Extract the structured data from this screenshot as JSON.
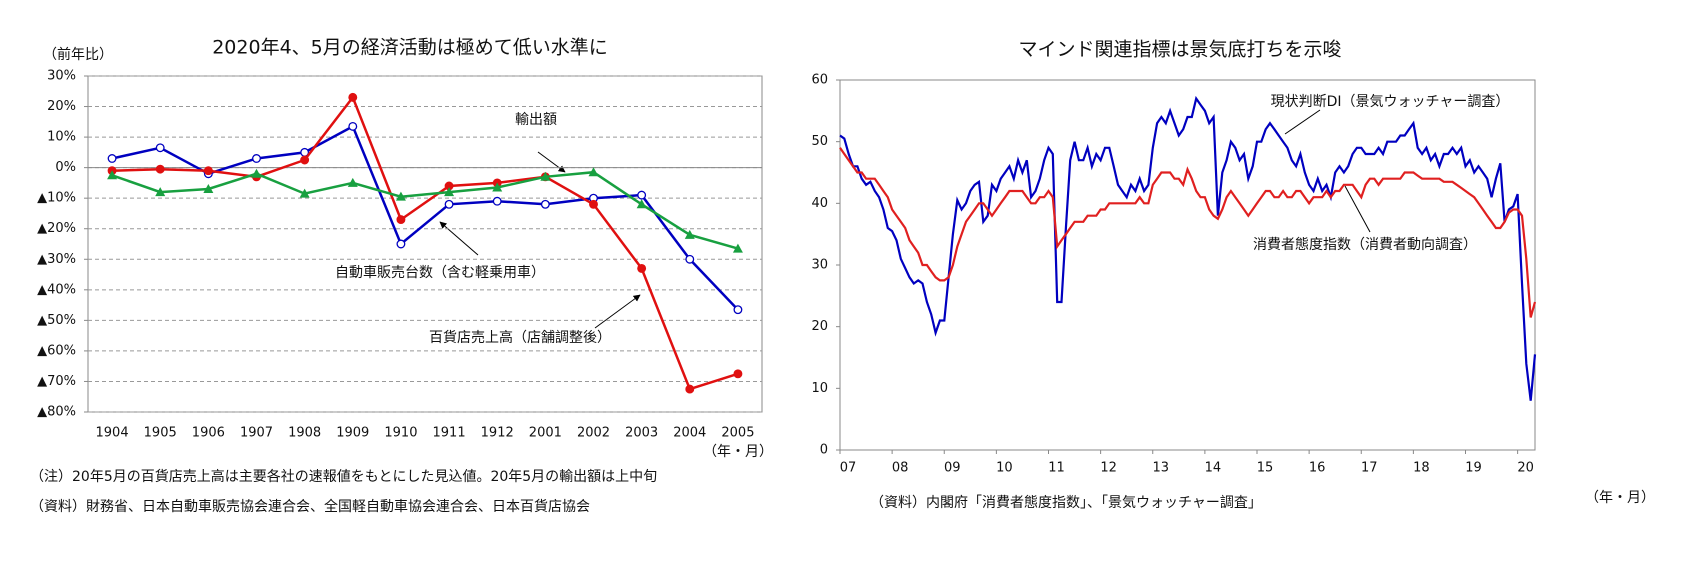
{
  "chart_data": [
    {
      "type": "line",
      "title": "2020年4、5月の経済活動は極めて低い水準に",
      "y_label": "（前年比）",
      "x_label": "（年・月）",
      "notes": [
        "（注）20年5月の百貨店売上高は主要各社の速報値をもとにした見込値。20年5月の輸出額は上中旬",
        "（資料）財務省、日本自動車販売協会連合会、全国軽自動車協会連合会、日本百貨店協会"
      ],
      "categories": [
        "1904",
        "1905",
        "1906",
        "1907",
        "1908",
        "1909",
        "1910",
        "1911",
        "1912",
        "2001",
        "2002",
        "2003",
        "2004",
        "2005"
      ],
      "series": [
        {
          "name": "自動車販売台数（含む軽乗用車）",
          "color": "#0000c0",
          "marker": "circle-open",
          "values": [
            3,
            6.5,
            -2,
            3,
            5,
            13.5,
            -25,
            -12,
            -11,
            -12,
            -10,
            -9,
            -30,
            -46.5
          ]
        },
        {
          "name": "百貨店売上高（店舗調整後）",
          "color": "#e01010",
          "marker": "circle",
          "values": [
            -1,
            -0.5,
            -1,
            -3,
            2.5,
            23,
            -17,
            -6,
            -5,
            -3,
            -12,
            -33,
            -72.5,
            -67.5
          ]
        },
        {
          "name": "輸出額",
          "color": "#18a040",
          "marker": "triangle",
          "values": [
            -2.5,
            -8,
            -7,
            -2,
            -8.5,
            -5,
            -9.5,
            -8,
            -6.5,
            -3,
            -1.5,
            -12,
            -22,
            -26.5
          ]
        }
      ],
      "ylim": [
        -80,
        30
      ],
      "yticks": [
        {
          "value": 30,
          "label": "30%"
        },
        {
          "value": 20,
          "label": "20%"
        },
        {
          "value": 10,
          "label": "10%"
        },
        {
          "value": 0,
          "label": "0%"
        },
        {
          "value": -10,
          "label": "▲10%"
        },
        {
          "value": -20,
          "label": "▲20%"
        },
        {
          "value": -30,
          "label": "▲30%"
        },
        {
          "value": -40,
          "label": "▲40%"
        },
        {
          "value": -50,
          "label": "▲50%"
        },
        {
          "value": -60,
          "label": "▲60%"
        },
        {
          "value": -70,
          "label": "▲70%"
        },
        {
          "value": -80,
          "label": "▲80%"
        }
      ],
      "grid": true
    },
    {
      "type": "line",
      "title": "マインド関連指標は景気底打ちを示唆",
      "x_label": "（年・月）",
      "notes": [
        "（資料）内閣府「消費者態度指数」、「景気ウォッチャー調査」"
      ],
      "categories": [
        "07",
        null,
        null,
        null,
        null,
        null,
        null,
        null,
        null,
        null,
        null,
        null,
        "08",
        null,
        null,
        null,
        null,
        null,
        null,
        null,
        null,
        null,
        null,
        null,
        "09",
        null,
        null,
        null,
        null,
        null,
        null,
        null,
        null,
        null,
        null,
        null,
        "10",
        null,
        null,
        null,
        null,
        null,
        null,
        null,
        null,
        null,
        null,
        null,
        "11",
        null,
        null,
        null,
        null,
        null,
        null,
        null,
        null,
        null,
        null,
        null,
        "12",
        null,
        null,
        null,
        null,
        null,
        null,
        null,
        null,
        null,
        null,
        null,
        "13",
        null,
        null,
        null,
        null,
        null,
        null,
        null,
        null,
        null,
        null,
        null,
        "14",
        null,
        null,
        null,
        null,
        null,
        null,
        null,
        null,
        null,
        null,
        null,
        "15",
        null,
        null,
        null,
        null,
        null,
        null,
        null,
        null,
        null,
        null,
        null,
        "16",
        null,
        null,
        null,
        null,
        null,
        null,
        null,
        null,
        null,
        null,
        null,
        "17",
        null,
        null,
        null,
        null,
        null,
        null,
        null,
        null,
        null,
        null,
        null,
        "18",
        null,
        null,
        null,
        null,
        null,
        null,
        null,
        null,
        null,
        null,
        null,
        "19",
        null,
        null,
        null,
        null,
        null,
        null,
        null,
        null,
        null,
        null,
        null,
        "20",
        null,
        null,
        null,
        null
      ],
      "series": [
        {
          "name": "現状判断DI（景気ウォッチャー調査）",
          "color": "#0000c0",
          "values": [
            51,
            50.5,
            48,
            46,
            46,
            44,
            43,
            43.5,
            42,
            41,
            39,
            36,
            35.5,
            34,
            31,
            29.5,
            28,
            27,
            27.5,
            27,
            24,
            22,
            19,
            21,
            21,
            28,
            35,
            40.5,
            39,
            40,
            42,
            43,
            43.5,
            37,
            38,
            43,
            42,
            44,
            45,
            46,
            44,
            47,
            45,
            47,
            41,
            42,
            44,
            47,
            49,
            48,
            24,
            24,
            36,
            47,
            50,
            47,
            47,
            49,
            46,
            48,
            47,
            49,
            49,
            46,
            43,
            42,
            41,
            43,
            42,
            44,
            42,
            43,
            49,
            53,
            54,
            53,
            55,
            53,
            51,
            52,
            54,
            54,
            57,
            56,
            55,
            53,
            54,
            38,
            45,
            47,
            50,
            49,
            47,
            48,
            44,
            46,
            50,
            50,
            52,
            53,
            52,
            51,
            50,
            49,
            47,
            46,
            48,
            45,
            43,
            42,
            44,
            42,
            43,
            41,
            45,
            46,
            45,
            46,
            48,
            49,
            49,
            48,
            48,
            48,
            49,
            48,
            50,
            50,
            50,
            51,
            51,
            52,
            53,
            49,
            48,
            49,
            47,
            48,
            46,
            48,
            48,
            49,
            48,
            49,
            46,
            47,
            45,
            46,
            45,
            44,
            41,
            44,
            46.5,
            37,
            39,
            39.5,
            41.5,
            27,
            14,
            8,
            15.5
          ]
        },
        {
          "name": "消費者態度指数（消費者動向調査）",
          "color": "#e02020",
          "values": [
            49,
            48,
            47,
            46,
            45,
            45,
            44,
            44,
            44,
            43,
            42,
            41,
            39,
            38,
            37,
            36,
            34,
            33,
            32,
            30,
            30,
            29,
            28,
            27.5,
            27.5,
            28,
            30,
            33,
            35,
            37,
            38,
            39,
            40,
            40,
            39,
            38,
            39,
            40,
            41,
            42,
            42,
            42,
            42,
            41,
            40,
            40,
            41,
            41,
            42,
            41,
            33,
            34,
            35,
            36,
            37,
            37,
            37,
            38,
            38,
            38,
            39,
            39,
            40,
            40,
            40,
            40,
            40,
            40,
            40,
            41,
            40,
            40,
            43,
            44,
            45,
            45,
            45,
            44,
            44,
            43,
            45.5,
            44,
            42,
            41,
            41,
            39,
            38,
            37.5,
            39,
            41,
            42,
            41,
            40,
            39,
            38,
            39,
            40,
            41,
            42,
            42,
            41,
            41,
            42,
            41,
            41,
            42,
            42,
            41,
            40,
            41,
            41,
            41,
            42,
            41,
            42,
            42,
            43,
            43,
            43,
            42,
            41,
            43,
            44,
            44,
            43,
            44,
            44,
            44,
            44,
            44,
            45,
            45,
            45,
            44.5,
            44,
            44,
            44,
            44,
            44,
            43.5,
            43.5,
            43.5,
            43,
            42.5,
            42,
            41.5,
            41,
            40,
            39,
            38,
            37,
            36,
            36,
            37,
            38.5,
            39,
            39,
            38,
            31,
            21.5,
            24
          ]
        }
      ],
      "ylim": [
        0,
        60
      ],
      "yticks": [
        0,
        10,
        20,
        30,
        40,
        50,
        60
      ],
      "grid": false
    }
  ]
}
